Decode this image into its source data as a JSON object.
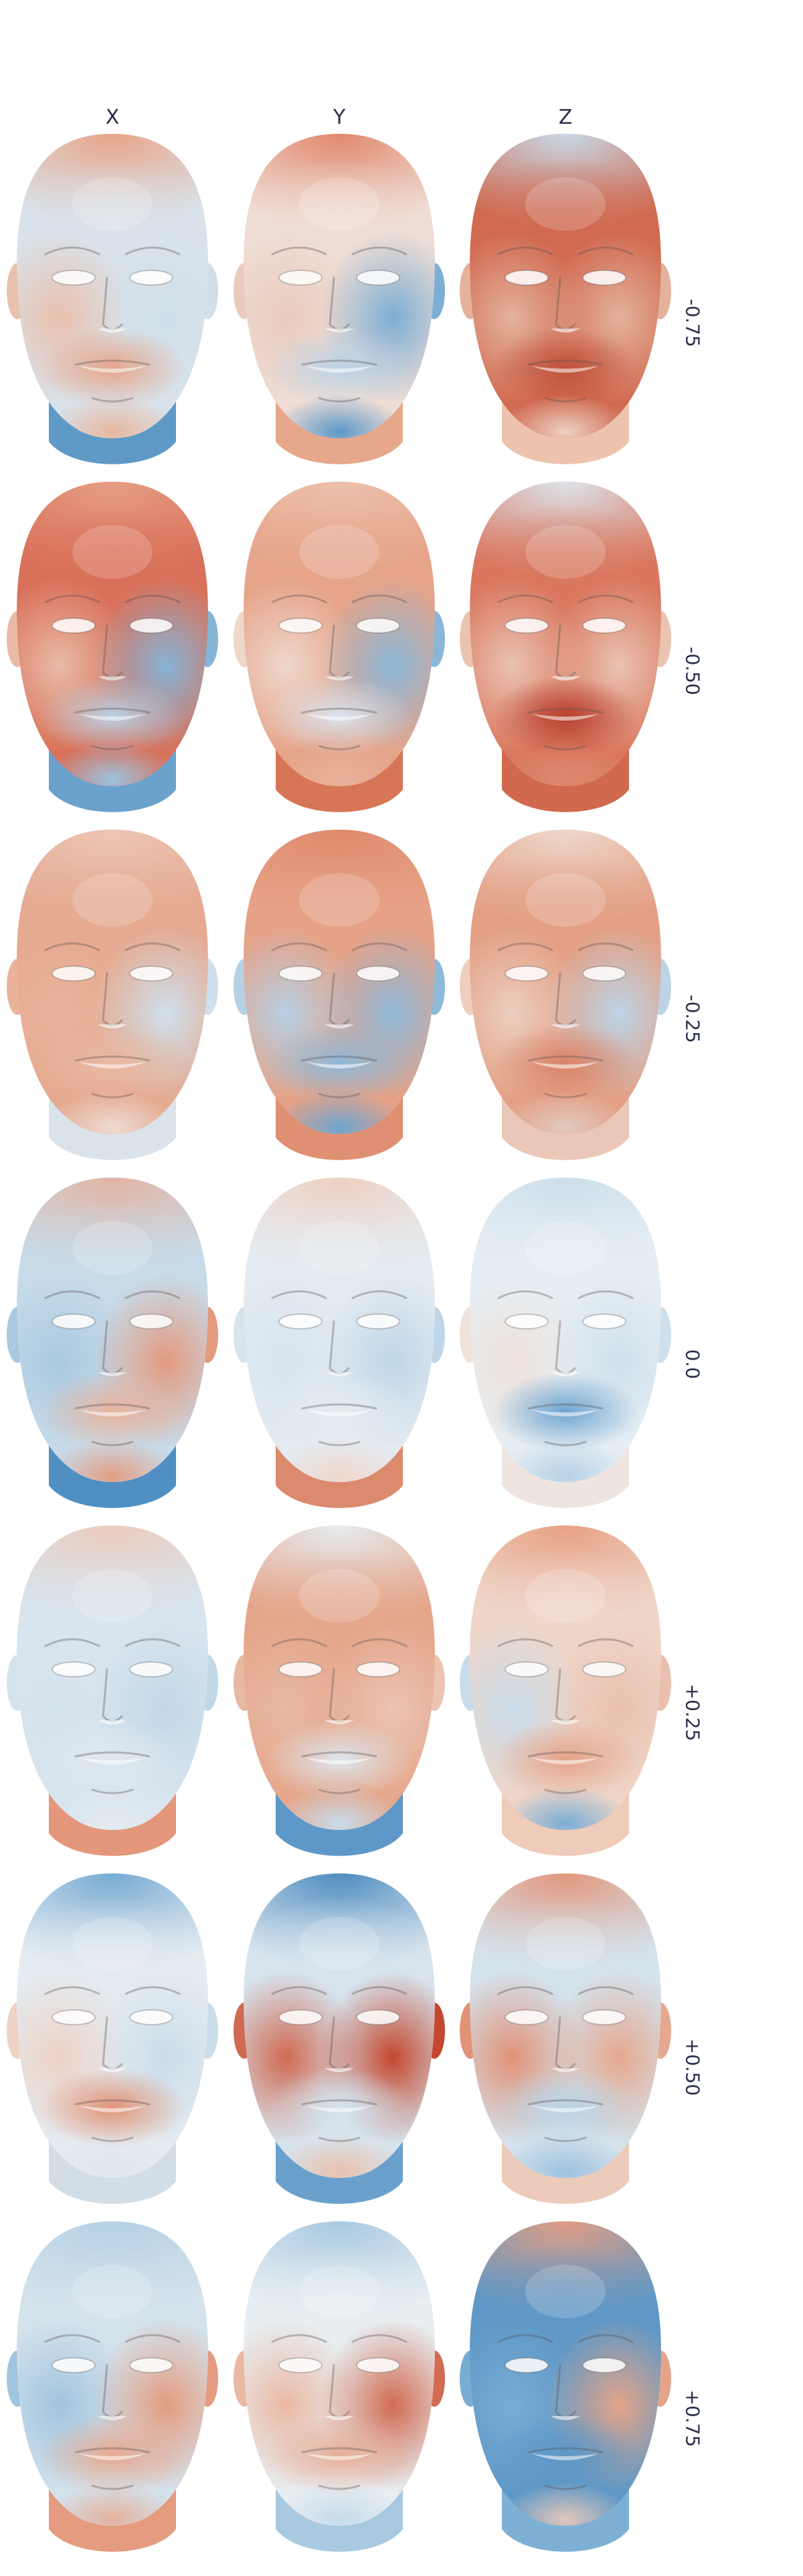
{
  "columns": [
    {
      "label": "X"
    },
    {
      "label": "Y"
    },
    {
      "label": "Z"
    }
  ],
  "rows": [
    {
      "label": "-0.75",
      "cells": [
        {
          "crown": "#e8a486",
          "forehead": "#d9e2ea",
          "cheekL": "#e9c0ad",
          "cheekR": "#d0dfea",
          "mouth": "#e6a58a",
          "chin": "#e8b7a0",
          "neck": "#5f9ac7"
        },
        {
          "crown": "#e0876a",
          "forehead": "#efddd5",
          "cheekL": "#e9cbbd",
          "cheekR": "#7daed4",
          "mouth": "#bcd3e6",
          "chin": "#5d98c8",
          "neck": "#e7a78b"
        },
        {
          "crown": "#c7dbea",
          "forehead": "#d06a50",
          "cheekL": "#e4b29c",
          "cheekR": "#e4b29c",
          "mouth": "#c0533c",
          "chin": "#edd0c2",
          "neck": "#eec3ae"
        }
      ]
    },
    {
      "label": "-0.50",
      "cells": [
        {
          "crown": "#e6a085",
          "forehead": "#d9715a",
          "cheekL": "#e9bba6",
          "cheekR": "#86b4d7",
          "mouth": "#b8d2e6",
          "chin": "#9cc2df",
          "neck": "#6ba2cc"
        },
        {
          "crown": "#edc1ac",
          "forehead": "#e6a48a",
          "cheekL": "#efd7cb",
          "cheekR": "#8ab7d8",
          "mouth": "#d8e4ee",
          "chin": "#e8b19a",
          "neck": "#d77657"
        },
        {
          "crown": "#dce6ee",
          "forehead": "#d9785f",
          "cheekL": "#eac3b1",
          "cheekR": "#eac3b1",
          "mouth": "#b8402f",
          "chin": "#dd8a6f",
          "neck": "#d0694e"
        }
      ]
    },
    {
      "label": "-0.25",
      "cells": [
        {
          "crown": "#edc7b5",
          "forehead": "#e5aa91",
          "cheekL": "#e9b39b",
          "cheekR": "#cfe0ec",
          "mouth": "#e9b9a3",
          "chin": "#eedbd2",
          "neck": "#dbe3ea"
        },
        {
          "crown": "#df8a6c",
          "forehead": "#e6a287",
          "cheekL": "#b6d0e4",
          "cheekR": "#8fb9d9",
          "mouth": "#8cb8d9",
          "chin": "#6ea4cf",
          "neck": "#e09072"
        },
        {
          "crown": "#efd9cd",
          "forehead": "#e3a085",
          "cheekL": "#edcebf",
          "cheekR": "#bcd4e6",
          "mouth": "#d9856b",
          "chin": "#e2c9bd",
          "neck": "#eac7b6"
        }
      ]
    },
    {
      "label": "0.0",
      "cells": [
        {
          "crown": "#e3b3a0",
          "forehead": "#c7dbe9",
          "cheekL": "#a9c9e0",
          "cheekR": "#e39a7f",
          "mouth": "#e8b29b",
          "chin": "#e39f85",
          "neck": "#4f8fc2"
        },
        {
          "crown": "#efd0c1",
          "forehead": "#e4ebf1",
          "cheekL": "#d6e4ee",
          "cheekR": "#bed6e8",
          "mouth": "#e4ebf1",
          "chin": "#efd7cb",
          "neck": "#dc8a6d"
        },
        {
          "crown": "#ccdeea",
          "forehead": "#e6eef4",
          "cheekL": "#efe2da",
          "cheekR": "#cfe0ec",
          "mouth": "#6ea4cf",
          "chin": "#b6d1e5",
          "neck": "#efe5e0"
        }
      ]
    },
    {
      "label": "+0.25",
      "cells": [
        {
          "crown": "#eccbbb",
          "forehead": "#d8e4ee",
          "cheekL": "#d5e3ed",
          "cheekR": "#c1d8e8",
          "mouth": "#dfe8ef",
          "chin": "#e3ebf1",
          "neck": "#e4977a"
        },
        {
          "crown": "#e7eef3",
          "forehead": "#e5a78c",
          "cheekL": "#e8b8a2",
          "cheekR": "#ebc4b2",
          "mouth": "#dde6ee",
          "chin": "#c8dceb",
          "neck": "#5d98c8"
        },
        {
          "crown": "#e7a083",
          "forehead": "#efd6c9",
          "cheekL": "#c9dcea",
          "cheekR": "#e9c0ad",
          "mouth": "#e5a387",
          "chin": "#7aaed5",
          "neck": "#efcbba"
        }
      ]
    },
    {
      "label": "+0.50",
      "cells": [
        {
          "crown": "#74a9d2",
          "forehead": "#e4ebf1",
          "cheekL": "#edd2c5",
          "cheekR": "#cbdde9",
          "mouth": "#e09376",
          "chin": "#dfe6ec",
          "neck": "#d3dde6"
        },
        {
          "crown": "#4c8bbf",
          "forehead": "#d7e4ee",
          "cheekL": "#d06a52",
          "cheekR": "#c4482f",
          "mouth": "#d3e2ec",
          "chin": "#e9c1ad",
          "neck": "#6aa1cc"
        },
        {
          "crown": "#e3967b",
          "forehead": "#d4e2ec",
          "cheekL": "#e19277",
          "cheekR": "#e6a88e",
          "mouth": "#b9d3e6",
          "chin": "#9dc2df",
          "neck": "#eccbbb"
        }
      ]
    },
    {
      "label": "+0.75",
      "cells": [
        {
          "crown": "#b4d0e4",
          "forehead": "#d4e2ec",
          "cheekL": "#a1c4df",
          "cheekR": "#e39c80",
          "mouth": "#e6a88e",
          "chin": "#e3b19c",
          "neck": "#e49b7f"
        },
        {
          "crown": "#a6c8e1",
          "forehead": "#e8eef2",
          "cheekL": "#eab9a3",
          "cheekR": "#d16b51",
          "mouth": "#e6ad94",
          "chin": "#c6dbea",
          "neck": "#a9c9e0"
        },
        {
          "crown": "#e49d82",
          "forehead": "#5f98c6",
          "cheekL": "#78acd3",
          "cheekR": "#e4a489",
          "mouth": "#5f98c6",
          "chin": "#e2c7bb",
          "neck": "#7eb0d5"
        }
      ]
    }
  ]
}
